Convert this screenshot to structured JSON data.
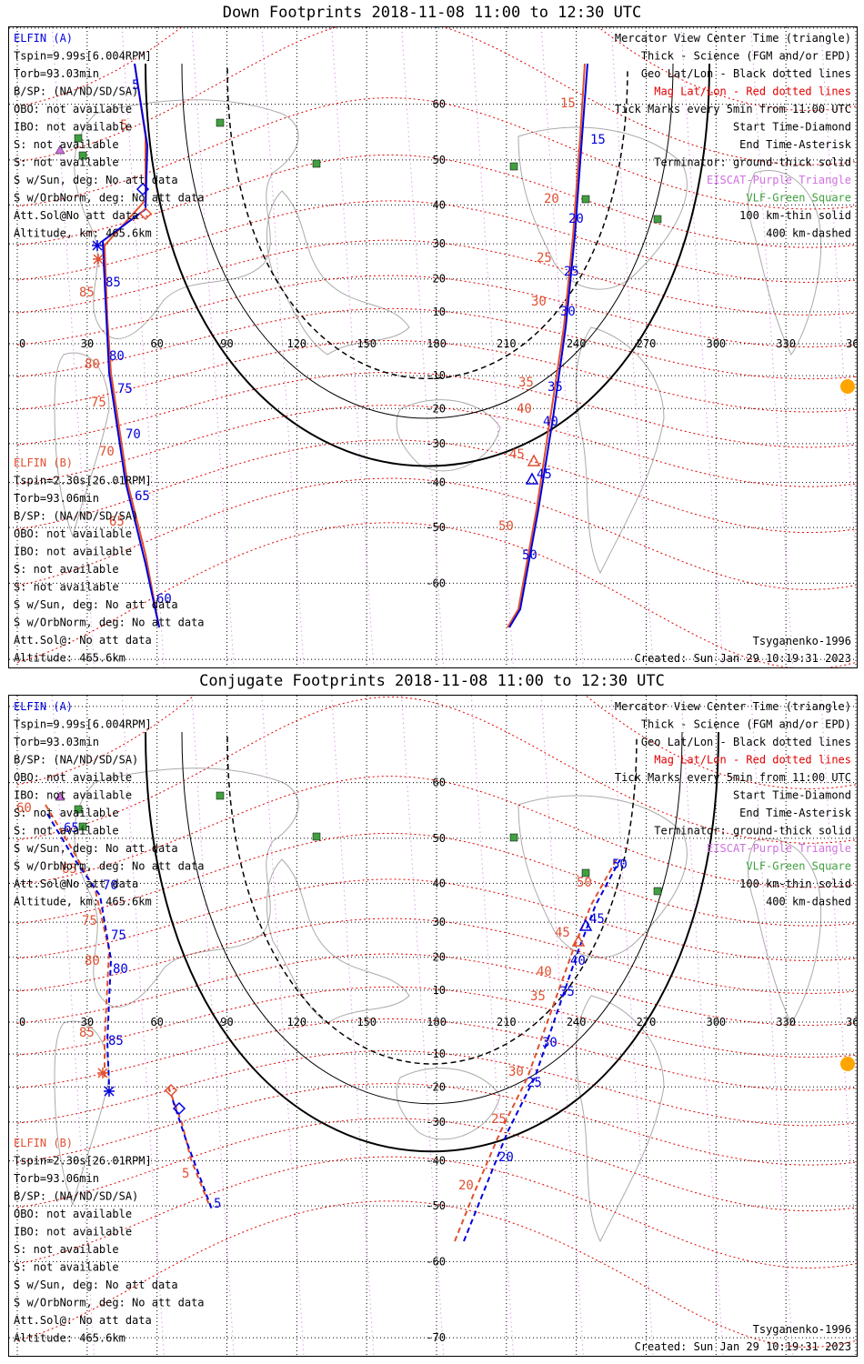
{
  "down": {
    "title": "Down Footprints 2018-11-08 11:00 to 12:30 UTC",
    "left_info_a": [
      "ELFIN (A)",
      "Tspin=9.99s[6.004RPM]",
      "Torb=93.03min",
      "B/SP: (NA/ND/SD/SA)",
      "OBO: not available",
      "IBO: not available",
      "S: not available",
      "S: not available",
      "S w/Sun, deg: No att data",
      "S w/OrbNorm, deg: No att data",
      "Att.Sol@No att data",
      "Altitude, km: 465.6km"
    ],
    "left_info_b": [
      "ELFIN (B)",
      "Tspin=2.30s[26.01RPM]",
      "Torb=93.06min",
      "B/SP: (NA/ND/SD/SA)",
      "OBO: not available",
      "IBO: not available",
      "S: not available",
      "S: not available",
      "S w/Sun, deg: No att data",
      "S w/OrbNorm, deg: No att data",
      "Att.Sol@: No att data",
      "Altitude: 465.6km"
    ],
    "footer_left": "",
    "footer_right_1": "Tsyganenko-1996",
    "footer_right_2": "Created: Sun Jan 29 10:19:31 2023",
    "blue_labels": [
      "5",
      "15",
      "20",
      "25",
      "30",
      "35",
      "40",
      "45",
      "50",
      "85",
      "80",
      "75",
      "70",
      "65",
      "60"
    ],
    "red_labels": [
      "5",
      "15",
      "20",
      "25",
      "30",
      "35",
      "40",
      "45",
      "50",
      "85",
      "80",
      "75",
      "70",
      "65"
    ]
  },
  "conj": {
    "title": "Conjugate Footprints 2018-11-08 11:00 to 12:30 UTC",
    "left_info_a": [
      "ELFIN (A)",
      "Tspin=9.99s[6.004RPM]",
      "Torb=93.03min",
      "B/SP: (NA/ND/SD/SA)",
      "OBO: not available",
      "IBO: not available",
      "S: not available",
      "S: not available",
      "S w/Sun, deg: No att data",
      "S w/OrbNorm, deg: No att data",
      "Att.Sol@No att data",
      "Altitude, km: 465.6km"
    ],
    "left_info_b": [
      "ELFIN (B)",
      "Tspin=2.30s[26.01RPM]",
      "Torb=93.06min",
      "B/SP: (NA/ND/SD/SA)",
      "OBO: not available",
      "IBO: not available",
      "S: not available",
      "S: not available",
      "S w/Sun, deg: No att data",
      "S w/OrbNorm, deg: No att data",
      "Att.Sol@: No att data",
      "Altitude: 465.6km"
    ],
    "footer_right_1": "Tsyganenko-1996",
    "footer_right_2": "Created: Sun Jan 29 10:19:31 2023",
    "blue_labels": [
      "65",
      "70",
      "75",
      "80",
      "85",
      "5",
      "20",
      "25",
      "30",
      "35",
      "40",
      "45",
      "50"
    ],
    "red_labels": [
      "60",
      "65",
      "70",
      "75",
      "80",
      "85",
      "5",
      "20",
      "25",
      "30",
      "35",
      "40",
      "45",
      "50"
    ]
  },
  "legend": [
    {
      "text": "Mercator View Center Time (triangle)",
      "color": "#000000"
    },
    {
      "text": "Thick - Science (FGM and/or EPD)",
      "color": "#000000"
    },
    {
      "text": "Geo Lat/Lon - Black dotted lines",
      "color": "#000000"
    },
    {
      "text": "Mag Lat/Lon - Red dotted lines",
      "color": "#e00000"
    },
    {
      "text": "Tick Marks every 5min from 11:00 UTC",
      "color": "#000000"
    },
    {
      "text": "Start Time-Diamond",
      "color": "#000000"
    },
    {
      "text": "End Time-Asterisk",
      "color": "#000000"
    },
    {
      "text": "Terminator: ground-thick solid",
      "color": "#000000"
    },
    {
      "text": "EISCAT-Purple Triangle",
      "color": "#d070e0"
    },
    {
      "text": "VLF-Green Square",
      "color": "#40a040"
    },
    {
      "text": "100 km-thin solid",
      "color": "#000000"
    },
    {
      "text": "400 km-dashed",
      "color": "#000000"
    }
  ],
  "axis": {
    "lon_ticks": [
      "0",
      "30",
      "60",
      "90",
      "120",
      "150",
      "180",
      "210",
      "240",
      "270",
      "300",
      "330",
      "360"
    ],
    "lat_ticks": [
      "70",
      "60",
      "50",
      "40",
      "30",
      "20",
      "10",
      "-10",
      "-20",
      "-30",
      "-40",
      "-50",
      "-60",
      "-70"
    ]
  },
  "colors": {
    "elfin_a": "#0000dd",
    "elfin_b": "#e05030",
    "mag": "#e00000",
    "geo": "#000000",
    "eiscat": "#d070e0",
    "vlf": "#40a040",
    "sun": "#ffa500"
  }
}
